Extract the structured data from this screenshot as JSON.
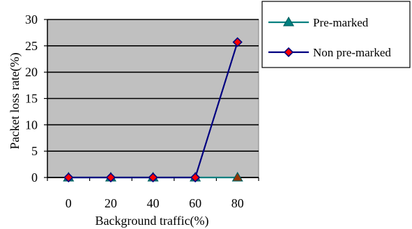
{
  "chart_data": {
    "type": "line",
    "title": "",
    "xlabel": "Background traffic(%)",
    "ylabel": "Packet loss rate(%)",
    "categories": [
      "0",
      "20",
      "40",
      "60",
      "80"
    ],
    "x": [
      0,
      20,
      40,
      60,
      80
    ],
    "ylim": [
      0,
      30
    ],
    "yticks": [
      "0",
      "5",
      "10",
      "15",
      "20",
      "25",
      "30"
    ],
    "grid": true,
    "plot_background": "#c0c0c0",
    "legend_position": "top-right",
    "series": [
      {
        "name": "Pre-marked",
        "values": [
          0,
          0,
          0,
          0,
          0
        ],
        "line_color": "#008080",
        "marker": "triangle",
        "marker_fill": "#008080",
        "marker_last_fill": "#993300"
      },
      {
        "name": "Non pre-marked",
        "values": [
          0,
          0,
          0,
          0,
          25.7
        ],
        "line_color": "#000080",
        "marker": "diamond",
        "marker_fill": "#ff0000",
        "marker_stroke": "#000080"
      }
    ]
  }
}
